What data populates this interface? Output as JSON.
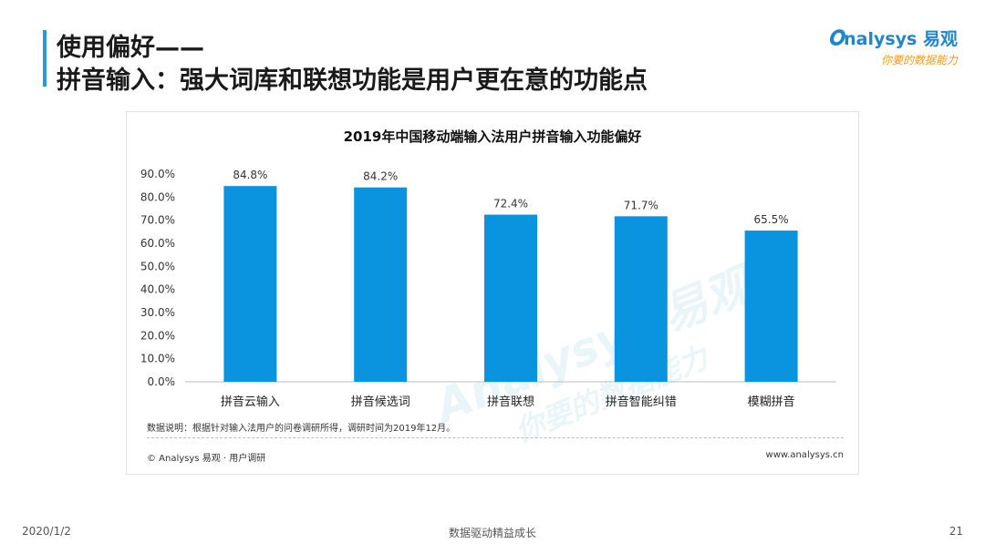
{
  "header": {
    "title_line1": "使用偏好——",
    "title_line2": "拼音输入：强大词库和联想功能是用户更在意的功能点"
  },
  "logo": {
    "main": "nalysys",
    "main_brand": "易观",
    "sub": "你要的数据能力"
  },
  "chart_data": {
    "type": "bar",
    "title": "2019年中国移动端输入法用户拼音输入功能偏好",
    "categories": [
      "拼音云输入",
      "拼音候选词",
      "拼音联想",
      "拼音智能纠错",
      "模糊拼音"
    ],
    "values": [
      84.8,
      84.2,
      72.4,
      71.7,
      65.5
    ],
    "value_labels": [
      "84.8%",
      "84.2%",
      "72.4%",
      "71.7%",
      "65.5%"
    ],
    "ylim": [
      0,
      90
    ],
    "ytick_labels": [
      "0.0%",
      "10.0%",
      "20.0%",
      "30.0%",
      "40.0%",
      "50.0%",
      "60.0%",
      "70.0%",
      "80.0%",
      "90.0%"
    ],
    "xlabel": "",
    "ylabel": "",
    "bar_color": "#0a93de",
    "grid": false
  },
  "chart_footer": {
    "note": "数据说明：根据针对输入法用户的问卷调研所得，调研时间为2019年12月。",
    "copyright": "© Analysys 易观 · 用户调研",
    "website": "www.analysys.cn"
  },
  "watermark": {
    "main": "Analysys 易观",
    "sub": "你要的数据能力"
  },
  "footer": {
    "date": "2020/1/2",
    "center": "数据驱动精益成长",
    "page": "21"
  },
  "colors": {
    "accent": "#2a9ad6",
    "logo_blue": "#1e86c9",
    "logo_orange": "#f29a1f"
  }
}
